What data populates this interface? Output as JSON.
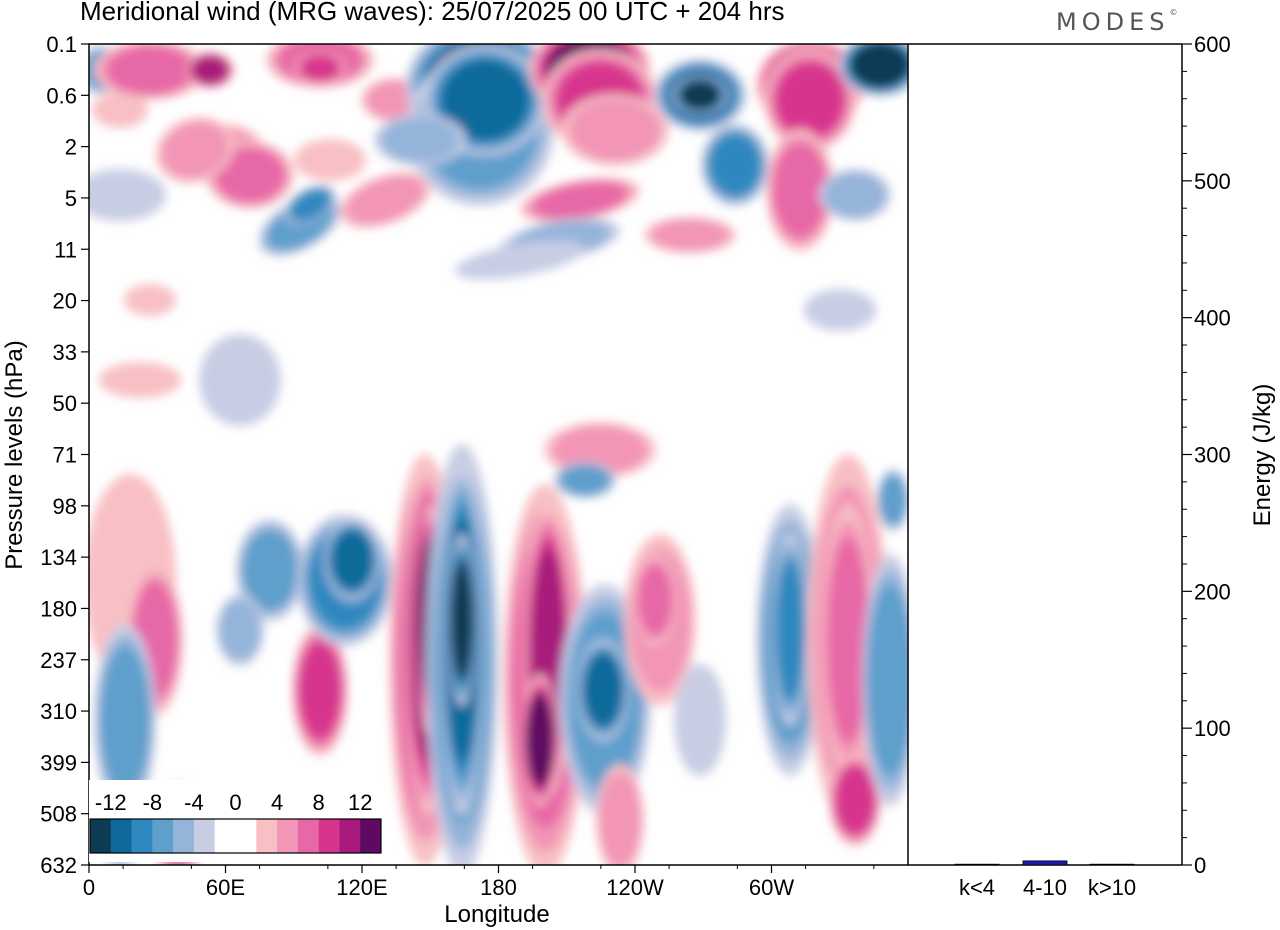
{
  "title": "Meridional wind (MRG waves):  25/07/2025  00 UTC  + 204 hrs",
  "logo": "MODES",
  "colors": {
    "neg": [
      "#0c3b52",
      "#0f6a9b",
      "#2f88bf",
      "#5f9fcc",
      "#94b4da",
      "#c8cde4"
    ],
    "pos": [
      "#f8c0c4",
      "#f295b6",
      "#e768a6",
      "#d7358d",
      "#a81a7c",
      "#5e0a62"
    ],
    "bar": "#1a1ab0"
  },
  "chart_data": [
    {
      "type": "heatmap",
      "title": "Meridional wind (MRG waves)",
      "xlabel": "Longitude",
      "ylabel": "Pressure levels (hPa)",
      "x_ticks": [
        "0",
        "60E",
        "120E",
        "180",
        "120W",
        "60W"
      ],
      "y_ticks": [
        "0.1",
        "0.6",
        "2",
        "5",
        "11",
        "20",
        "33",
        "50",
        "71",
        "98",
        "134",
        "180",
        "237",
        "310",
        "399",
        "508",
        "632"
      ],
      "colorbar_labels": [
        "-12",
        "-8",
        "-4",
        "0",
        "4",
        "8",
        "12"
      ],
      "levels": [
        -14,
        -12,
        -10,
        -8,
        -6,
        -4,
        -2,
        2,
        4,
        6,
        8,
        10,
        12,
        14
      ]
    },
    {
      "type": "bar",
      "categories": [
        "k<4",
        "4-10",
        "k>10"
      ],
      "values": [
        0,
        3,
        0
      ],
      "ylabel": "Energy (J/kg)",
      "ylim": [
        0,
        600
      ],
      "y_ticks": [
        "0",
        "100",
        "200",
        "300",
        "400",
        "500",
        "600"
      ]
    }
  ]
}
